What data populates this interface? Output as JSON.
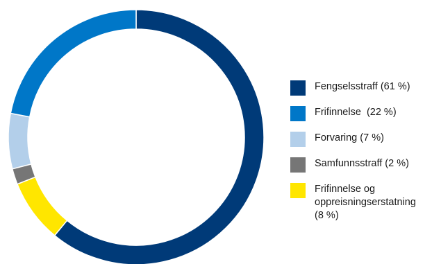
{
  "chart_data": {
    "type": "pie",
    "donut": true,
    "title": "",
    "legend_position": "right",
    "slices": [
      {
        "label": "Fengselsstraff (61 %)",
        "value": 61,
        "color": "#003a78"
      },
      {
        "label": "Frifinnelse og\noppreisningserstatning\n(8 %)",
        "value": 8,
        "color": "#ffe600"
      },
      {
        "label": "Samfunnsstraff (2 %)",
        "value": 2,
        "color": "#767676"
      },
      {
        "label": "Forvaring (7 %)",
        "value": 7,
        "color": "#b3cfea"
      },
      {
        "label": "Frifinnelse  (22 %)",
        "value": 22,
        "color": "#0077c8"
      }
    ],
    "legend_order": [
      0,
      4,
      3,
      2,
      1
    ]
  }
}
